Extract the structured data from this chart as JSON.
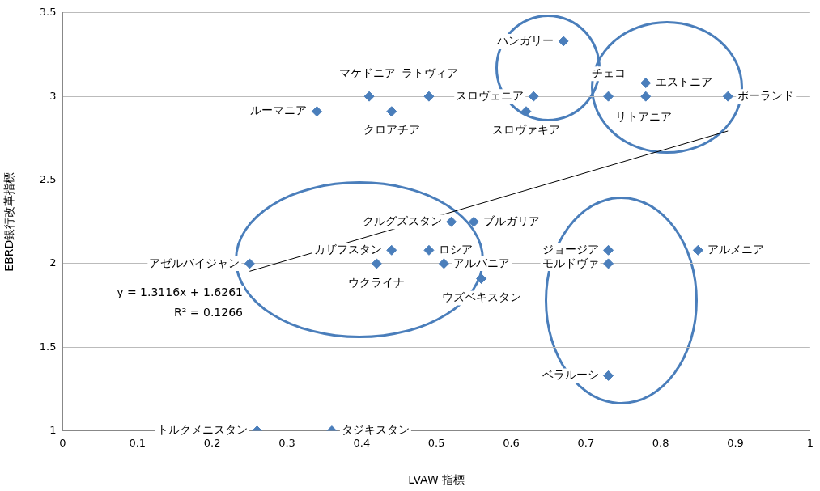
{
  "chart_data": {
    "type": "scatter",
    "xlabel": "LVAW 指標",
    "ylabel": "EBRD銀行改革指標",
    "xlim": [
      0,
      1
    ],
    "xticks": [
      0,
      0.1,
      0.2,
      0.3,
      0.4,
      0.5,
      0.6,
      0.7,
      0.8,
      0.9,
      1
    ],
    "ylim": [
      1,
      3.5
    ],
    "yticks": [
      1,
      1.5,
      2,
      2.5,
      3,
      3.5
    ],
    "grid": "y",
    "marker": "diamond",
    "series": [
      {
        "color": "#4a7ebb",
        "x": [
          0.26,
          0.36,
          0.73,
          0.25,
          0.42,
          0.44,
          0.49,
          0.51,
          0.56,
          0.52,
          0.55,
          0.73,
          0.73,
          0.85,
          0.34,
          0.41,
          0.44,
          0.49,
          0.63,
          0.62,
          0.67,
          0.73,
          0.78,
          0.78,
          0.89
        ],
        "values": [
          1,
          1,
          1.33,
          2,
          2,
          2.08,
          2.08,
          2,
          1.91,
          2.25,
          2.25,
          2.08,
          2,
          2.08,
          2.91,
          3,
          2.91,
          3,
          3,
          2.91,
          3.33,
          3,
          3.08,
          3,
          3
        ]
      },
      {
        "type": "line",
        "marker": "none",
        "color": "#000000",
        "x": [
          0.25,
          0.89
        ],
        "values": [
          1.954,
          2.793
        ]
      }
    ],
    "annotations": [
      {
        "text": "トルクメニスタン",
        "x": 0.26,
        "y": 1
      },
      {
        "text": "タジキスタン",
        "x": 0.36,
        "y": 1
      },
      {
        "text": "ベラルーシ",
        "x": 0.73,
        "y": 1.33
      },
      {
        "text": "アゼルバイジャン",
        "x": 0.25,
        "y": 2
      },
      {
        "text": "ウクライナ",
        "x": 0.42,
        "y": 2
      },
      {
        "text": "カザフスタン",
        "x": 0.44,
        "y": 2.08
      },
      {
        "text": "ロシア",
        "x": 0.49,
        "y": 2.08
      },
      {
        "text": "アルバニア",
        "x": 0.51,
        "y": 2
      },
      {
        "text": "ウズベキスタン",
        "x": 0.56,
        "y": 1.91
      },
      {
        "text": "クルグズスタン",
        "x": 0.52,
        "y": 2.25
      },
      {
        "text": "ブルガリア",
        "x": 0.55,
        "y": 2.25
      },
      {
        "text": "ジョージア",
        "x": 0.73,
        "y": 2.08
      },
      {
        "text": "モルドヴァ",
        "x": 0.73,
        "y": 2
      },
      {
        "text": "アルメニア",
        "x": 0.85,
        "y": 2.08
      },
      {
        "text": "ルーマニア",
        "x": 0.34,
        "y": 2.91
      },
      {
        "text": "マケドニア",
        "x": 0.41,
        "y": 3
      },
      {
        "text": "クロアチア",
        "x": 0.44,
        "y": 2.91
      },
      {
        "text": "ラトヴィア",
        "x": 0.49,
        "y": 3
      },
      {
        "text": "スロヴェニア",
        "x": 0.63,
        "y": 3
      },
      {
        "text": "スロヴァキア",
        "x": 0.62,
        "y": 2.91
      },
      {
        "text": "ハンガリー",
        "x": 0.67,
        "y": 3.33
      },
      {
        "text": "チェコ",
        "x": 0.73,
        "y": 3
      },
      {
        "text": "エストニア",
        "x": 0.78,
        "y": 3.08
      },
      {
        "text": "リトアニア",
        "x": 0.78,
        "y": 3
      },
      {
        "text": "ポーランド",
        "x": 0.89,
        "y": 3
      },
      "y = 1.3116x + 1.6261",
      "R² = 0.1266"
    ]
  }
}
